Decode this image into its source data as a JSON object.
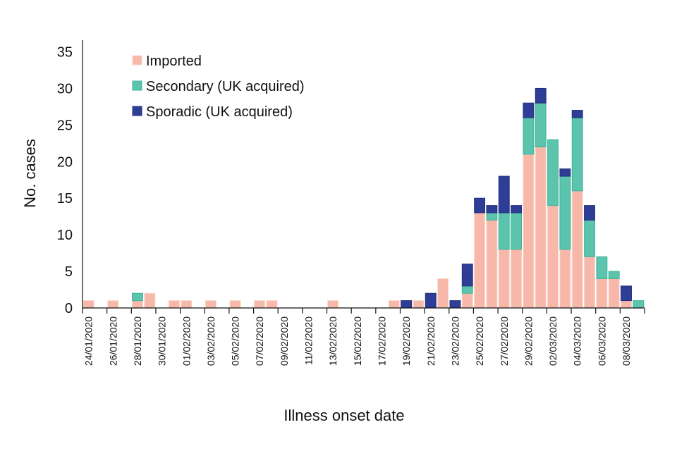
{
  "chart_data": {
    "type": "bar",
    "stacked": true,
    "title": "",
    "xlabel": "Illness onset date",
    "ylabel": "No. cases",
    "ylim": [
      0,
      35
    ],
    "yticks": [
      0,
      5,
      10,
      15,
      20,
      25,
      30,
      35
    ],
    "grid": false,
    "legend_position": "top-left",
    "categories": [
      "24/01/2020",
      "25/01/2020",
      "26/01/2020",
      "27/01/2020",
      "28/01/2020",
      "29/01/2020",
      "30/01/2020",
      "31/01/2020",
      "01/02/2020",
      "02/02/2020",
      "03/02/2020",
      "04/02/2020",
      "05/02/2020",
      "06/02/2020",
      "07/02/2020",
      "08/02/2020",
      "09/02/2020",
      "10/02/2020",
      "11/02/2020",
      "12/02/2020",
      "13/02/2020",
      "14/02/2020",
      "15/02/2020",
      "16/02/2020",
      "17/02/2020",
      "18/02/2020",
      "19/02/2020",
      "20/02/2020",
      "21/02/2020",
      "22/02/2020",
      "23/02/2020",
      "24/02/2020",
      "25/02/2020",
      "26/02/2020",
      "27/02/2020",
      "28/02/2020",
      "29/02/2020",
      "01/03/2020",
      "02/03/2020",
      "03/03/2020",
      "04/03/2020",
      "05/03/2020",
      "06/03/2020",
      "07/03/2020",
      "08/03/2020",
      "09/03/2020"
    ],
    "tick_labels": [
      "24/01/2020",
      "26/01/2020",
      "28/01/2020",
      "30/01/2020",
      "01/02/2020",
      "03/02/2020",
      "05/02/2020",
      "07/02/2020",
      "09/02/2020",
      "11/02/2020",
      "13/02/2020",
      "15/02/2020",
      "17/02/2020",
      "19/02/2020",
      "21/02/2020",
      "23/02/2020",
      "25/02/2020",
      "27/02/2020",
      "29/02/2020",
      "02/03/2020",
      "04/03/2020",
      "06/03/2020",
      "08/03/2020"
    ],
    "series": [
      {
        "name": "Imported",
        "color": "#F7B8AA",
        "values": [
          1,
          0,
          1,
          0,
          1,
          2,
          0,
          1,
          1,
          0,
          1,
          0,
          1,
          0,
          1,
          1,
          0,
          0,
          0,
          0,
          1,
          0,
          0,
          0,
          0,
          1,
          0,
          1,
          0,
          4,
          0,
          2,
          13,
          12,
          8,
          8,
          21,
          22,
          14,
          8,
          16,
          7,
          4,
          4,
          1,
          0
        ]
      },
      {
        "name": "Secondary (UK acquired)",
        "color": "#5CC4AD",
        "values": [
          0,
          0,
          0,
          0,
          1,
          0,
          0,
          0,
          0,
          0,
          0,
          0,
          0,
          0,
          0,
          0,
          0,
          0,
          0,
          0,
          0,
          0,
          0,
          0,
          0,
          0,
          0,
          0,
          0,
          0,
          0,
          1,
          0,
          1,
          5,
          5,
          5,
          6,
          9,
          10,
          10,
          5,
          3,
          1,
          0,
          1
        ]
      },
      {
        "name": "Sporadic (UK acquired)",
        "color": "#2E3E96",
        "values": [
          0,
          0,
          0,
          0,
          0,
          0,
          0,
          0,
          0,
          0,
          0,
          0,
          0,
          0,
          0,
          0,
          0,
          0,
          0,
          0,
          0,
          0,
          0,
          0,
          0,
          0,
          1,
          0,
          2,
          0,
          1,
          3,
          2,
          1,
          5,
          1,
          2,
          2,
          0,
          1,
          1,
          2,
          0,
          0,
          2,
          0
        ]
      }
    ]
  }
}
